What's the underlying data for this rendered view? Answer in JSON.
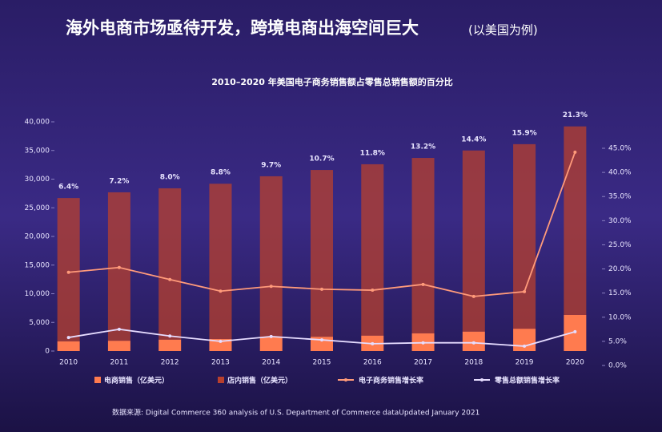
{
  "chart_data": {
    "type": "bar",
    "title": "海外电商市场亟待开发，跨境电商出海空间巨大",
    "title_note": "(以美国为例)",
    "subtitle": "2010–2020 年美国电子商务销售额占零售总销售额的百分比",
    "source": "数据来源: Digital Commerce 360 analysis of U.S. Department of Commerce dataUpdated January 2021",
    "categories": [
      "2010",
      "2011",
      "2012",
      "2013",
      "2014",
      "2015",
      "2016",
      "2017",
      "2018",
      "2019",
      "2020"
    ],
    "series": [
      {
        "name": "电商销售（亿美元）",
        "color": "#ff7b4f",
        "values": [
          1700,
          1800,
          2000,
          2100,
          2400,
          2500,
          2700,
          3100,
          3400,
          3900,
          6300
        ]
      },
      {
        "name": "店内销售（亿美元）",
        "color": "#b8402e",
        "values": [
          25000,
          25900,
          26400,
          27100,
          28100,
          29100,
          29900,
          30600,
          31600,
          32200,
          32900
        ]
      },
      {
        "name": "电子商务销售增长率",
        "color": "#ff9a7a",
        "axis": "y2",
        "values": [
          19.3,
          20.3,
          17.8,
          15.4,
          16.4,
          15.8,
          15.6,
          16.8,
          14.3,
          15.3,
          44.2
        ]
      },
      {
        "name": "零售总额销售增长率",
        "color": "#e6dcff",
        "axis": "y2",
        "values": [
          5.8,
          7.5,
          6.1,
          5.0,
          6.0,
          5.3,
          4.5,
          4.7,
          4.7,
          4.0,
          7.0
        ]
      }
    ],
    "share": {
      "values": [
        6.4,
        7.2,
        8.0,
        8.8,
        9.7,
        10.7,
        11.8,
        13.2,
        14.4,
        15.9,
        21.3
      ],
      "value_labels": [
        "6.4%",
        "7.2%",
        "8.0%",
        "8.8%",
        "9.7%",
        "10.7%",
        "11.8%",
        "13.2%",
        "14.4%",
        "15.9%",
        "21.3%"
      ]
    },
    "ylim": [
      0,
      40000
    ],
    "yticks": [
      0,
      {
        "value": 5000,
        "label": "5,000"
      },
      {
        "value": 10000,
        "label": "10,000"
      },
      {
        "value": 15000,
        "label": "15,000"
      },
      {
        "value": 20000,
        "label": "20,000"
      },
      {
        "value": 25000,
        "label": "25,000"
      },
      {
        "value": 30000,
        "label": "30,000"
      },
      {
        "value": 35000,
        "label": "35,000"
      },
      {
        "value": 40000,
        "label": "40,000"
      }
    ],
    "y2lim": [
      0,
      45
    ],
    "y2ticks": [
      {
        "value": 0,
        "label": "0.0%"
      },
      {
        "value": 5,
        "label": "5.0%"
      },
      {
        "value": 10,
        "label": "10.0%"
      },
      {
        "value": 15,
        "label": "15.0%"
      },
      {
        "value": 20,
        "label": "20.0%"
      },
      {
        "value": 25,
        "label": "25.0%"
      },
      {
        "value": 30,
        "label": "30.0%"
      },
      {
        "value": 35,
        "label": "35.0%"
      },
      {
        "value": 40,
        "label": "40.0%"
      },
      {
        "value": 45,
        "label": "45.0%"
      }
    ]
  }
}
